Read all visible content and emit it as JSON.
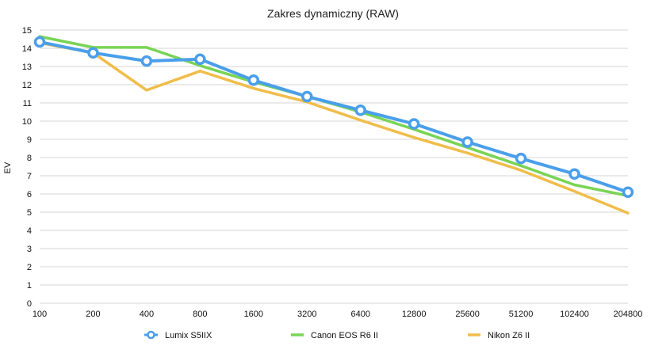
{
  "chart_data": {
    "type": "line",
    "title": "Zakres dynamiczny (RAW)",
    "xlabel": "",
    "ylabel": "EV",
    "categories": [
      "100",
      "200",
      "400",
      "800",
      "1600",
      "3200",
      "6400",
      "12800",
      "25600",
      "51200",
      "102400",
      "204800"
    ],
    "ylim": [
      0,
      15
    ],
    "yticks": [
      0,
      1,
      2,
      3,
      4,
      5,
      6,
      7,
      8,
      9,
      10,
      11,
      12,
      13,
      14,
      15
    ],
    "grid": true,
    "legend_position": "bottom",
    "series": [
      {
        "name": "Lumix S5IIX",
        "color": "#4a9fea",
        "marker": "circle",
        "values": [
          14.35,
          13.75,
          13.3,
          13.4,
          12.25,
          11.35,
          10.6,
          9.85,
          8.85,
          7.95,
          7.1,
          6.1
        ]
      },
      {
        "name": "Canon EOS R6 II",
        "color": "#79d455",
        "marker": "none",
        "values": [
          14.65,
          14.05,
          14.05,
          13.05,
          12.15,
          11.35,
          10.5,
          9.55,
          8.55,
          7.55,
          6.5,
          5.9
        ]
      },
      {
        "name": "Nikon Z6 II",
        "color": "#f0bd4a",
        "marker": "none",
        "values": [
          14.3,
          13.75,
          11.7,
          12.75,
          11.8,
          11.05,
          10.05,
          9.1,
          8.25,
          7.3,
          6.15,
          4.95
        ]
      }
    ]
  }
}
